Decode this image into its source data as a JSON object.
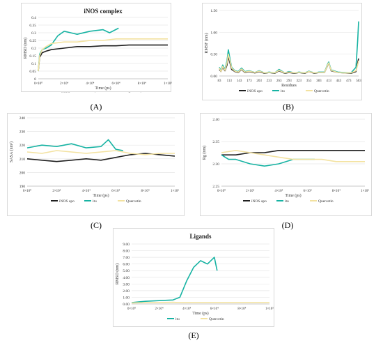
{
  "colors": {
    "apo": "#1f1f1f",
    "itu": "#17b3a3",
    "quercetin": "#f3e2a0",
    "grid": "#e6e6e6"
  },
  "panels": [
    {
      "key": "A",
      "label": "(A)"
    },
    {
      "key": "B",
      "label": "(B)"
    },
    {
      "key": "C",
      "label": "(C)"
    },
    {
      "key": "D",
      "label": "(D)"
    },
    {
      "key": "E",
      "label": "(E)"
    }
  ],
  "chart_data": [
    {
      "id": "A",
      "type": "line",
      "title": "iNOS complex",
      "xlabel": "Time (ps)",
      "ylabel": "RMSD (nm)",
      "xlim": [
        0,
        100000
      ],
      "ylim": [
        0,
        0.4
      ],
      "xticks": [
        "0×10⁰",
        "2×10⁴",
        "4×10⁴",
        "6×10⁴",
        "8×10⁴",
        "1×10⁵"
      ],
      "yticks": [
        "0",
        "0.05",
        "0.1",
        "0.15",
        "0.2",
        "0.25",
        "0.3",
        "0.35",
        "0.4"
      ],
      "legend": [
        "iNOS apo",
        "itu",
        "Quercetin"
      ],
      "legend_position": "bottom",
      "series": [
        {
          "name": "iNOS apo",
          "x": [
            0,
            1000,
            3000,
            6000,
            10000,
            20000,
            30000,
            40000,
            50000,
            60000,
            70000,
            80000,
            90000,
            100000
          ],
          "y": [
            0.05,
            0.14,
            0.17,
            0.18,
            0.19,
            0.2,
            0.21,
            0.21,
            0.215,
            0.215,
            0.22,
            0.22,
            0.22,
            0.22
          ]
        },
        {
          "name": "itu",
          "x": [
            0,
            1000,
            3000,
            6000,
            10000,
            15000,
            20000,
            25000,
            30000,
            40000,
            50000,
            55000,
            62000
          ],
          "y": [
            0.05,
            0.16,
            0.19,
            0.2,
            0.22,
            0.28,
            0.31,
            0.3,
            0.29,
            0.31,
            0.32,
            0.3,
            0.33
          ]
        },
        {
          "name": "Quercetin",
          "x": [
            0,
            1000,
            3000,
            6000,
            10000,
            20000,
            30000,
            40000,
            50000,
            60000,
            70000,
            80000,
            90000,
            100000
          ],
          "y": [
            0.05,
            0.15,
            0.19,
            0.21,
            0.23,
            0.24,
            0.24,
            0.25,
            0.25,
            0.26,
            0.26,
            0.26,
            0.26,
            0.26
          ]
        }
      ]
    },
    {
      "id": "B",
      "type": "line",
      "xlabel": "Residues",
      "ylabel": "RMSF (nm)",
      "xlim": [
        83,
        503
      ],
      "ylim": [
        0,
        1.5
      ],
      "xticks": [
        "83",
        "113",
        "143",
        "173",
        "203",
        "233",
        "263",
        "293",
        "323",
        "353",
        "383",
        "413",
        "443",
        "473",
        "503"
      ],
      "yticks": [
        "0.00",
        "0.50",
        "1.00",
        "1.50"
      ],
      "legend": [
        "iNOS apo",
        "itu",
        "Quercetin"
      ],
      "legend_position": "bottom",
      "series": [
        {
          "name": "iNOS apo",
          "x": [
            83,
            88,
            93,
            100,
            106,
            110,
            115,
            120,
            130,
            140,
            150,
            160,
            173,
            190,
            203,
            220,
            233,
            250,
            263,
            280,
            293,
            310,
            323,
            340,
            353,
            370,
            383,
            400,
            410,
            413,
            420,
            440,
            460,
            480,
            495,
            500,
            503
          ],
          "y": [
            0.15,
            0.1,
            0.2,
            0.12,
            0.25,
            0.45,
            0.3,
            0.15,
            0.1,
            0.08,
            0.15,
            0.08,
            0.1,
            0.07,
            0.1,
            0.06,
            0.08,
            0.06,
            0.12,
            0.06,
            0.08,
            0.06,
            0.08,
            0.06,
            0.1,
            0.06,
            0.08,
            0.08,
            0.25,
            0.3,
            0.12,
            0.08,
            0.07,
            0.06,
            0.1,
            0.3,
            0.4
          ]
        },
        {
          "name": "itu",
          "x": [
            83,
            88,
            93,
            100,
            106,
            110,
            115,
            120,
            130,
            140,
            150,
            160,
            173,
            190,
            203,
            220,
            233,
            250,
            263,
            280,
            293,
            310,
            323,
            340,
            353,
            370,
            383,
            400,
            410,
            413,
            420,
            440,
            460,
            480,
            495,
            500,
            503
          ],
          "y": [
            0.2,
            0.12,
            0.25,
            0.15,
            0.35,
            0.6,
            0.4,
            0.2,
            0.12,
            0.1,
            0.18,
            0.1,
            0.12,
            0.08,
            0.12,
            0.07,
            0.09,
            0.07,
            0.15,
            0.07,
            0.1,
            0.07,
            0.09,
            0.07,
            0.11,
            0.07,
            0.09,
            0.09,
            0.28,
            0.32,
            0.14,
            0.09,
            0.08,
            0.07,
            0.2,
            0.8,
            1.25
          ]
        },
        {
          "name": "Quercetin",
          "x": [
            83,
            88,
            93,
            100,
            106,
            110,
            115,
            120,
            130,
            140,
            150,
            160,
            173,
            190,
            203,
            220,
            233,
            250,
            263,
            280,
            293,
            310,
            323,
            340,
            353,
            370,
            383,
            400,
            410,
            413,
            420,
            440,
            460,
            480,
            495,
            500,
            503
          ],
          "y": [
            0.18,
            0.1,
            0.22,
            0.13,
            0.3,
            0.5,
            0.35,
            0.18,
            0.11,
            0.09,
            0.16,
            0.09,
            0.11,
            0.08,
            0.11,
            0.07,
            0.08,
            0.07,
            0.13,
            0.07,
            0.09,
            0.07,
            0.08,
            0.07,
            0.1,
            0.07,
            0.08,
            0.08,
            0.26,
            0.3,
            0.13,
            0.08,
            0.07,
            0.07,
            0.12,
            0.25,
            0.35
          ]
        }
      ]
    },
    {
      "id": "C",
      "type": "line",
      "xlabel": "Time (ps)",
      "ylabel": "SASA (nm²)",
      "xlim": [
        0,
        100000
      ],
      "ylim": [
        190,
        240
      ],
      "xticks": [
        "0×10⁰",
        "2×10⁴",
        "4×10⁴",
        "6×10⁴",
        "8×10⁴",
        "1×10⁵"
      ],
      "yticks": [
        "190",
        "200",
        "210",
        "220",
        "230",
        "240"
      ],
      "legend": [
        "iNOS apo",
        "itu",
        "Quercetin"
      ],
      "legend_position": "bottom",
      "series": [
        {
          "name": "iNOS apo",
          "x": [
            0,
            10000,
            20000,
            30000,
            40000,
            50000,
            60000,
            70000,
            80000,
            90000,
            100000
          ],
          "y": [
            210,
            209,
            208,
            209,
            210,
            209,
            211,
            213,
            214,
            213,
            212
          ]
        },
        {
          "name": "itu",
          "x": [
            0,
            10000,
            20000,
            30000,
            40000,
            50000,
            55000,
            60000,
            65000
          ],
          "y": [
            218,
            220,
            219,
            221,
            218,
            219,
            224,
            217,
            216
          ]
        },
        {
          "name": "Quercetin",
          "x": [
            0,
            10000,
            20000,
            30000,
            40000,
            50000,
            60000,
            70000,
            80000,
            90000,
            100000
          ],
          "y": [
            215,
            214,
            216,
            215,
            214,
            215,
            216,
            214,
            213,
            214,
            214
          ]
        }
      ]
    },
    {
      "id": "D",
      "type": "line",
      "xlabel": "Time (ps)",
      "ylabel": "Rg (nm)",
      "xlim": [
        0,
        100000
      ],
      "ylim": [
        2.25,
        2.4
      ],
      "xticks": [
        "0×10⁰",
        "2×10⁴",
        "4×10⁴",
        "6×10⁴",
        "8×10⁴",
        "1×10⁵"
      ],
      "yticks": [
        "2.25",
        "2.30",
        "2.35",
        "2.40"
      ],
      "legend": [
        "iNOS apo",
        "itu",
        "Quercetin"
      ],
      "legend_position": "bottom",
      "series": [
        {
          "name": "iNOS apo",
          "x": [
            0,
            10000,
            20000,
            30000,
            40000,
            50000,
            60000,
            70000,
            80000,
            90000,
            100000
          ],
          "y": [
            2.32,
            2.32,
            2.325,
            2.325,
            2.33,
            2.33,
            2.33,
            2.33,
            2.33,
            2.33,
            2.33
          ]
        },
        {
          "name": "itu",
          "x": [
            0,
            5000,
            10000,
            20000,
            30000,
            40000,
            50000,
            60000,
            65000
          ],
          "y": [
            2.32,
            2.31,
            2.31,
            2.3,
            2.295,
            2.3,
            2.31,
            2.31,
            2.31
          ]
        },
        {
          "name": "Quercetin",
          "x": [
            0,
            10000,
            20000,
            30000,
            40000,
            50000,
            60000,
            70000,
            80000,
            90000,
            100000
          ],
          "y": [
            2.325,
            2.33,
            2.325,
            2.32,
            2.315,
            2.31,
            2.31,
            2.31,
            2.305,
            2.305,
            2.305
          ]
        }
      ]
    },
    {
      "id": "E",
      "type": "line",
      "title": "Ligands",
      "xlabel": "Time (ps)",
      "ylabel": "RMSD (nm)",
      "xlim": [
        0,
        100000
      ],
      "ylim": [
        0,
        9
      ],
      "xticks": [
        "0×10⁰",
        "2×10⁴",
        "4×10⁴",
        "6×10⁴",
        "8×10⁴",
        "1×10⁵"
      ],
      "yticks": [
        "0.00",
        "1.00",
        "2.00",
        "3.00",
        "4.00",
        "5.00",
        "6.00",
        "7.00",
        "8.00",
        "9.00"
      ],
      "legend": [
        "itu",
        "Quercetin"
      ],
      "legend_position": "bottom",
      "series": [
        {
          "name": "itu",
          "x": [
            0,
            5000,
            10000,
            20000,
            30000,
            35000,
            40000,
            45000,
            50000,
            55000,
            60000,
            62000
          ],
          "y": [
            0.2,
            0.3,
            0.4,
            0.5,
            0.6,
            1.0,
            3.5,
            5.5,
            6.5,
            6.0,
            7.0,
            5.0
          ]
        },
        {
          "name": "Quercetin",
          "x": [
            0,
            10000,
            20000,
            30000,
            35000,
            40000,
            50000,
            60000,
            70000,
            80000,
            90000,
            100000
          ],
          "y": [
            0.15,
            0.2,
            0.2,
            0.25,
            0.2,
            0.2,
            0.2,
            0.2,
            0.2,
            0.2,
            0.2,
            0.2
          ]
        }
      ]
    }
  ]
}
